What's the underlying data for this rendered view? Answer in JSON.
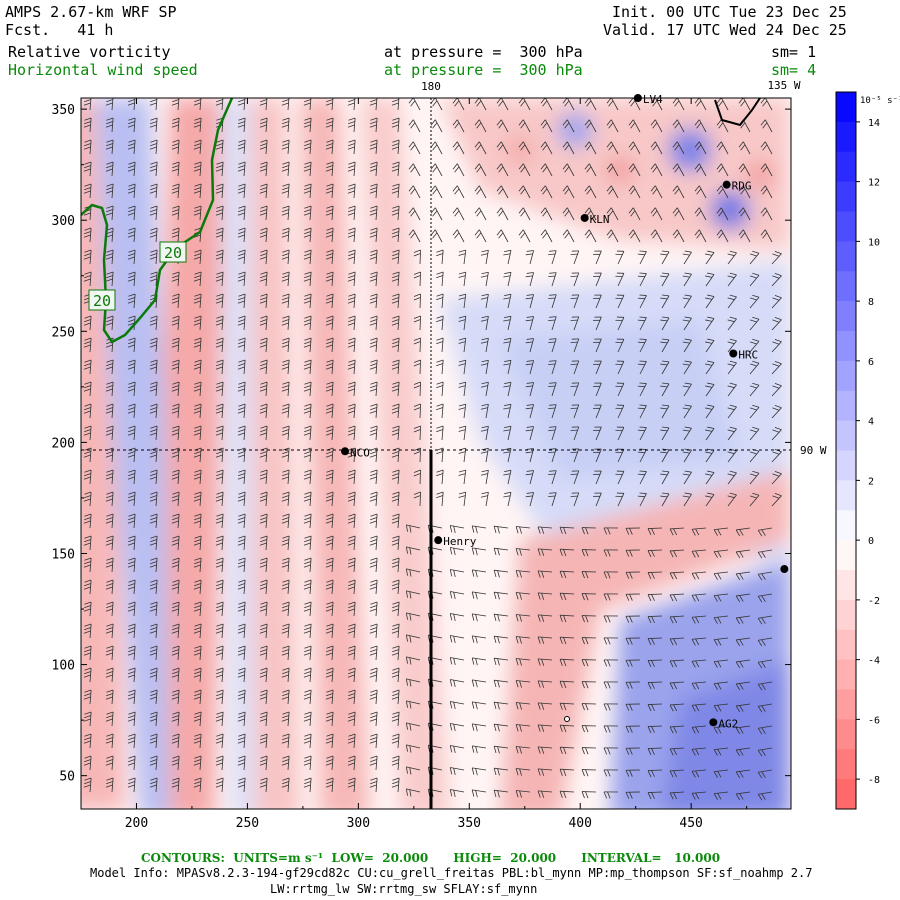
{
  "header": {
    "title": "AMPS 2.67-km WRF SP",
    "forecast": "Fcst.   41 h",
    "init": "Init. 00 UTC Tue 23 Dec 25",
    "valid": "Valid. 17 UTC Wed 24 Dec 25",
    "field1_name": "Relative vorticity",
    "field1_level": "at pressure =  300 hPa",
    "field1_sm": "sm= 1",
    "field2_name": "Horizontal wind speed",
    "field2_level": "at pressure =  300 hPa",
    "field2_sm": "sm= 4"
  },
  "axes": {
    "x_ticks": [
      "200",
      "250",
      "300",
      "350",
      "400",
      "450"
    ],
    "y_ticks": [
      "350",
      "300",
      "250",
      "200",
      "150",
      "100",
      "50"
    ],
    "x_range": [
      175,
      495
    ],
    "y_range": [
      35,
      355
    ]
  },
  "graticule": {
    "lon180": "180",
    "lon135": "135 W",
    "lon90": "90 W"
  },
  "stations": [
    {
      "name": "NCO",
      "x": 294,
      "y": 196
    },
    {
      "name": "Henry",
      "x": 336,
      "y": 156
    },
    {
      "name": "KLN",
      "x": 402,
      "y": 301
    },
    {
      "name": "RDG",
      "x": 466,
      "y": 316
    },
    {
      "name": "HRC",
      "x": 469,
      "y": 240
    },
    {
      "name": "AG2",
      "x": 460,
      "y": 74
    },
    {
      "name": "LV4",
      "x": 426,
      "y": 355
    },
    {
      "name": "",
      "x": 492,
      "y": 143
    }
  ],
  "contour_labels": [
    "20",
    "20"
  ],
  "colorbar": {
    "unit": "10⁻⁵ s⁻¹",
    "ticks": [
      "14",
      "12",
      "10",
      "8",
      "6",
      "4",
      "2",
      "0",
      "-2",
      "-4",
      "-6",
      "-8"
    ],
    "levels": [
      15,
      14,
      13,
      12,
      11,
      10,
      9,
      8,
      7,
      6,
      5,
      4,
      3,
      2,
      1,
      0,
      -1,
      -2,
      -3,
      -4,
      -5,
      -6,
      -7,
      -8,
      -9
    ],
    "positive_color": "#0000ff",
    "negative_color": "#ff6060"
  },
  "footer": {
    "contours": "CONTOURS:  UNITS=m s⁻¹  LOW=  20.000      HIGH=  20.000      INTERVAL=   10.000",
    "model_info": "Model Info: MPASv8.2.3-194-gf29cd82c CU:cu_grell_freitas PBL:bl_mynn MP:mp_thompson SF:sf_noahmp 2.7",
    "model_info2": "LW:rrtmg_lw SW:rrtmg_sw SFLAY:sf_mynn"
  }
}
